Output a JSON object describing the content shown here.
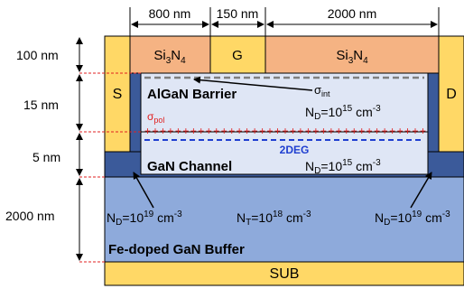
{
  "dims_top": {
    "left": "800 nm",
    "gate": "150 nm",
    "right": "2000 nm"
  },
  "dims_left": {
    "nitride": "100 nm",
    "barrier": "15 nm",
    "channel": "5 nm",
    "buffer": "2000 nm"
  },
  "top_layer": {
    "nitride_left": "Si",
    "nitride_left_sub": "3",
    "nitride_left_tail": "N",
    "nitride_left_sub2": "4",
    "gate": "G",
    "nitride_right": "Si",
    "nitride_right_sub": "3",
    "nitride_right_tail": "N",
    "nitride_right_sub2": "4"
  },
  "contacts": {
    "source": "S",
    "drain": "D"
  },
  "barrier": {
    "title": "AlGaN Barrier",
    "sigma_int": "σ",
    "sigma_int_sub": "int",
    "sigma_pol": "σ",
    "sigma_pol_sub": "pol",
    "plus_signs": "+++++++++++++++++++++++++++++++++++++",
    "doping_base": "N",
    "doping_sub": "D",
    "doping_eq": "=10",
    "doping_exp": "15",
    "doping_unit": " cm",
    "doping_unit_exp": "-3"
  },
  "channel": {
    "title": "GaN Channel",
    "twodeg": "2DEG",
    "doping_base": "N",
    "doping_sub": "D",
    "doping_eq": "=10",
    "doping_exp": "15",
    "doping_unit": " cm",
    "doping_unit_exp": "-3"
  },
  "buffer": {
    "title": "Fe-doped GaN Buffer",
    "left_base": "N",
    "left_sub": "D",
    "left_eq": "=10",
    "left_exp": "19",
    "left_unit": " cm",
    "left_unit_exp": "-3",
    "mid_base": "N",
    "mid_sub": "T",
    "mid_eq": "=10",
    "mid_exp": "18",
    "mid_unit": " cm",
    "mid_unit_exp": "-3",
    "right_base": "N",
    "right_sub": "D",
    "right_eq": "=10",
    "right_exp": "19",
    "right_unit": " cm",
    "right_unit_exp": "-3"
  },
  "substrate": {
    "label": "SUB"
  },
  "colors": {
    "contact_yellow": "#ffd866",
    "nitride": "#f5b383",
    "barrier": "#dfe6f5",
    "channel_dark": "#3b5a9a",
    "buffer": "#8eaadb",
    "pol_red": "#e02020",
    "twodeg_blue": "#1f3fd0",
    "dim_red": "#e02020"
  }
}
